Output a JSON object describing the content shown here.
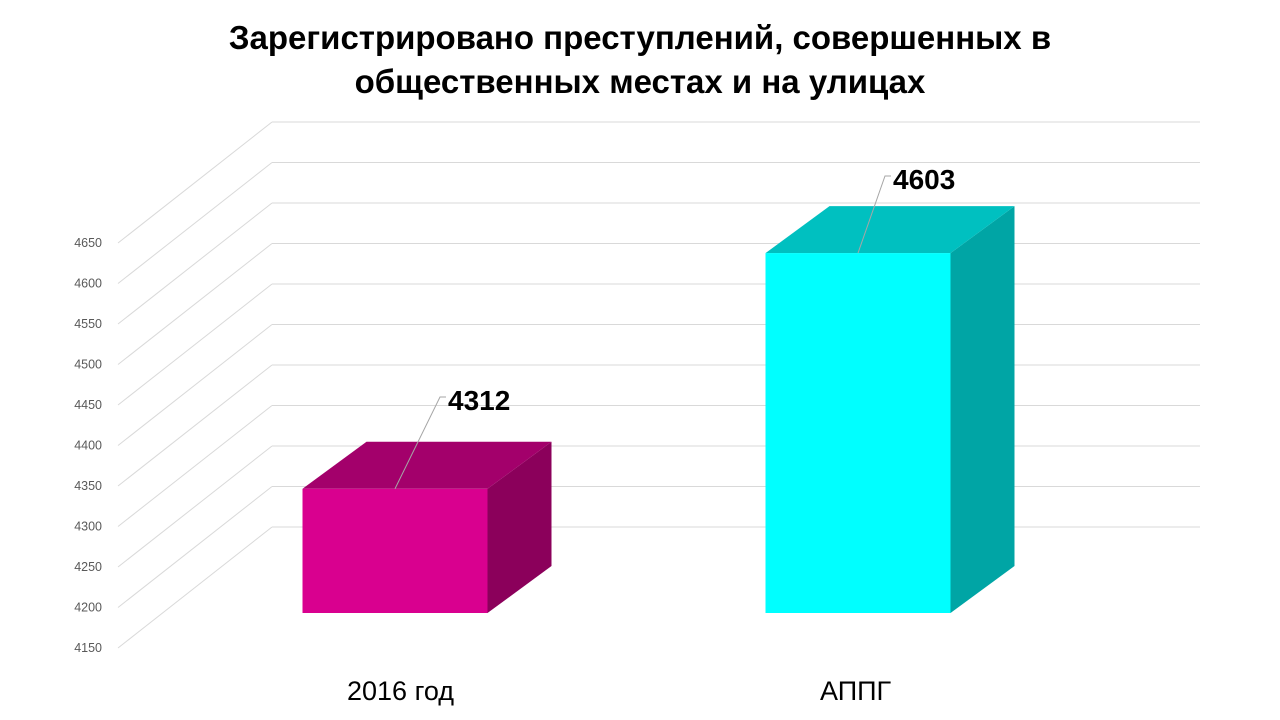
{
  "title_line1": "Зарегистрировано  преступлений, совершенных в",
  "title_line2": "общественных местах и на улицах",
  "chart_data": {
    "type": "bar",
    "title": "Зарегистрировано  преступлений, совершенных в общественных местах и на улицах",
    "categories": [
      "2016 год",
      "АППГ"
    ],
    "values": [
      4312,
      4603
    ],
    "ylim": [
      4150,
      4650
    ],
    "yticks": [
      4150,
      4200,
      4250,
      4300,
      4350,
      4400,
      4450,
      4500,
      4550,
      4600,
      4650
    ],
    "grid": true,
    "three_d": true,
    "colors": [
      {
        "front": "#d9008f",
        "top": "#a3006b",
        "side": "#8b005b"
      },
      {
        "front": "#00ffff",
        "top": "#00c0c0",
        "side": "#00a5a5"
      }
    ]
  }
}
